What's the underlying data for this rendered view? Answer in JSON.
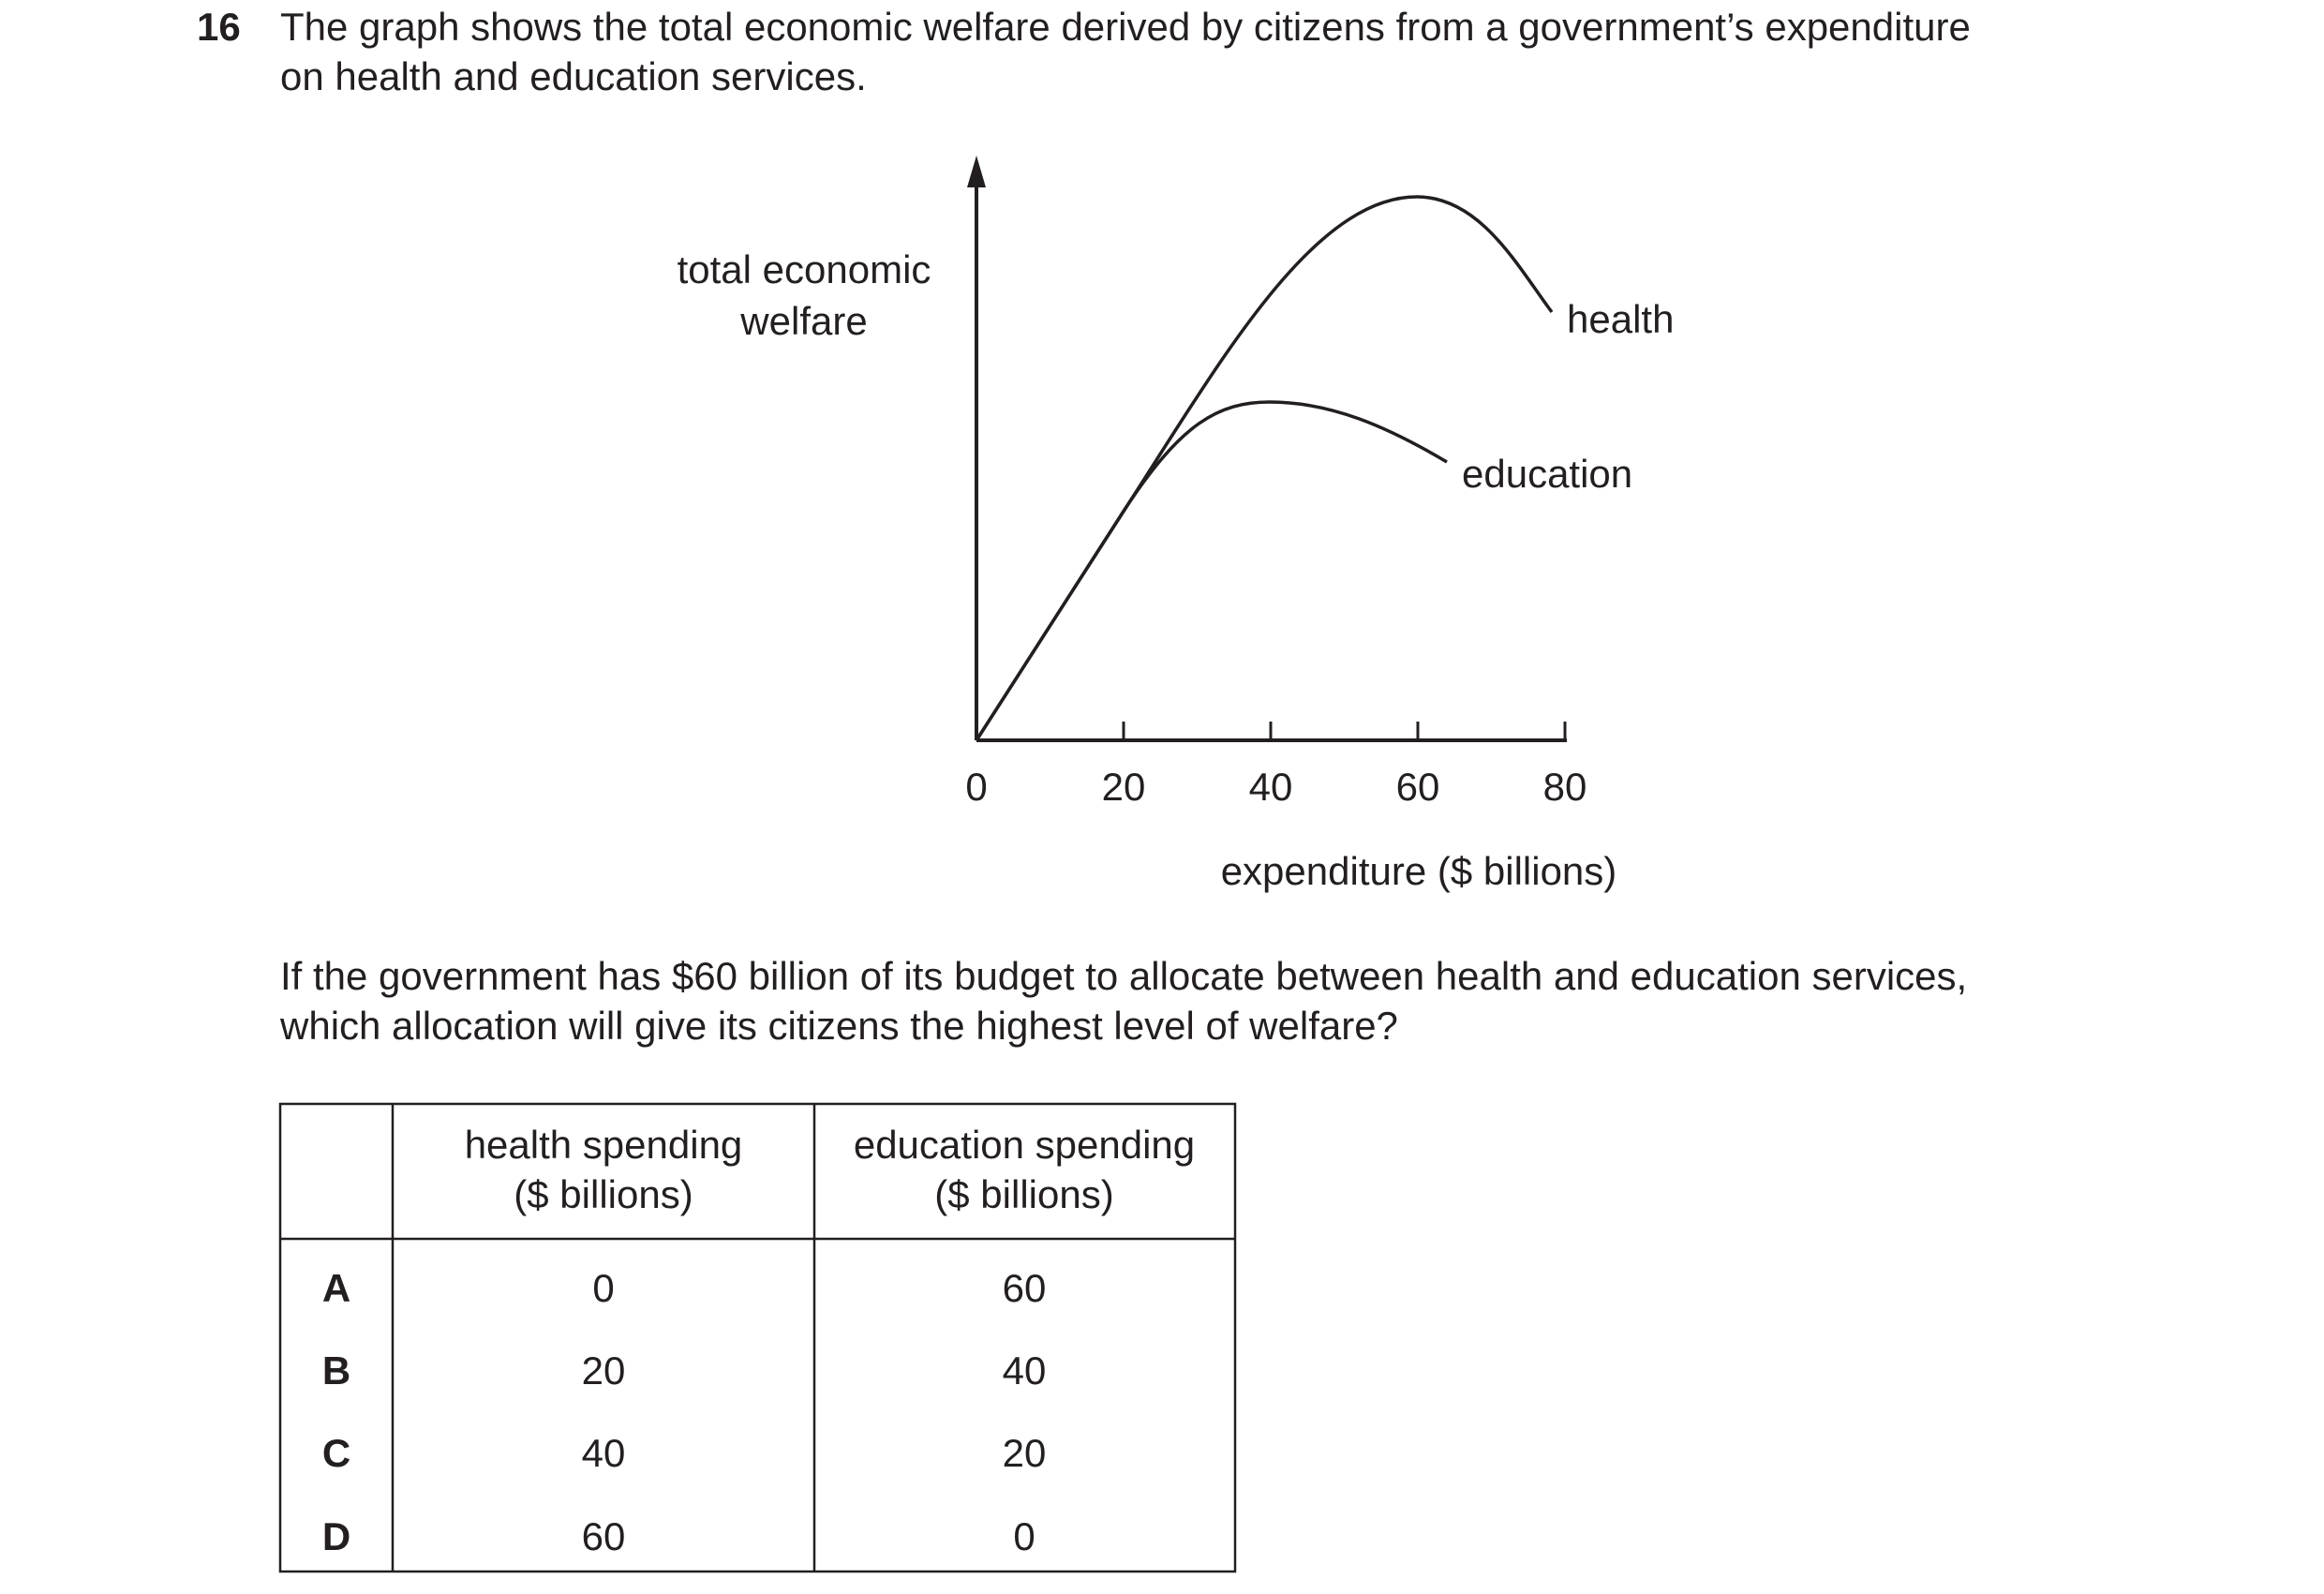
{
  "question": {
    "number": "16",
    "text_lines": [
      "The graph shows the total economic welfare derived by citizens from a government’s expenditure",
      "on health and education services."
    ]
  },
  "graph": {
    "y_axis_label_lines": [
      "total economic",
      "welfare"
    ],
    "x_axis_label": "expenditure ($ billions)",
    "xlim": [
      0,
      80
    ],
    "xticks": [
      0,
      20,
      40,
      60,
      80
    ],
    "curve_labels": [
      "health",
      "education"
    ]
  },
  "prompt_lines": [
    "If the government has $60 billion of its budget to allocate between health and education services,",
    "which allocation will give its citizens the highest level of welfare?"
  ],
  "table": {
    "columns": [
      [
        "health spending",
        "($ billions)"
      ],
      [
        "education spending",
        "($ billions)"
      ]
    ],
    "rows": [
      {
        "option": "A",
        "values": [
          0,
          60
        ]
      },
      {
        "option": "B",
        "values": [
          20,
          40
        ]
      },
      {
        "option": "C",
        "values": [
          40,
          20
        ]
      },
      {
        "option": "D",
        "values": [
          60,
          0
        ]
      }
    ]
  }
}
